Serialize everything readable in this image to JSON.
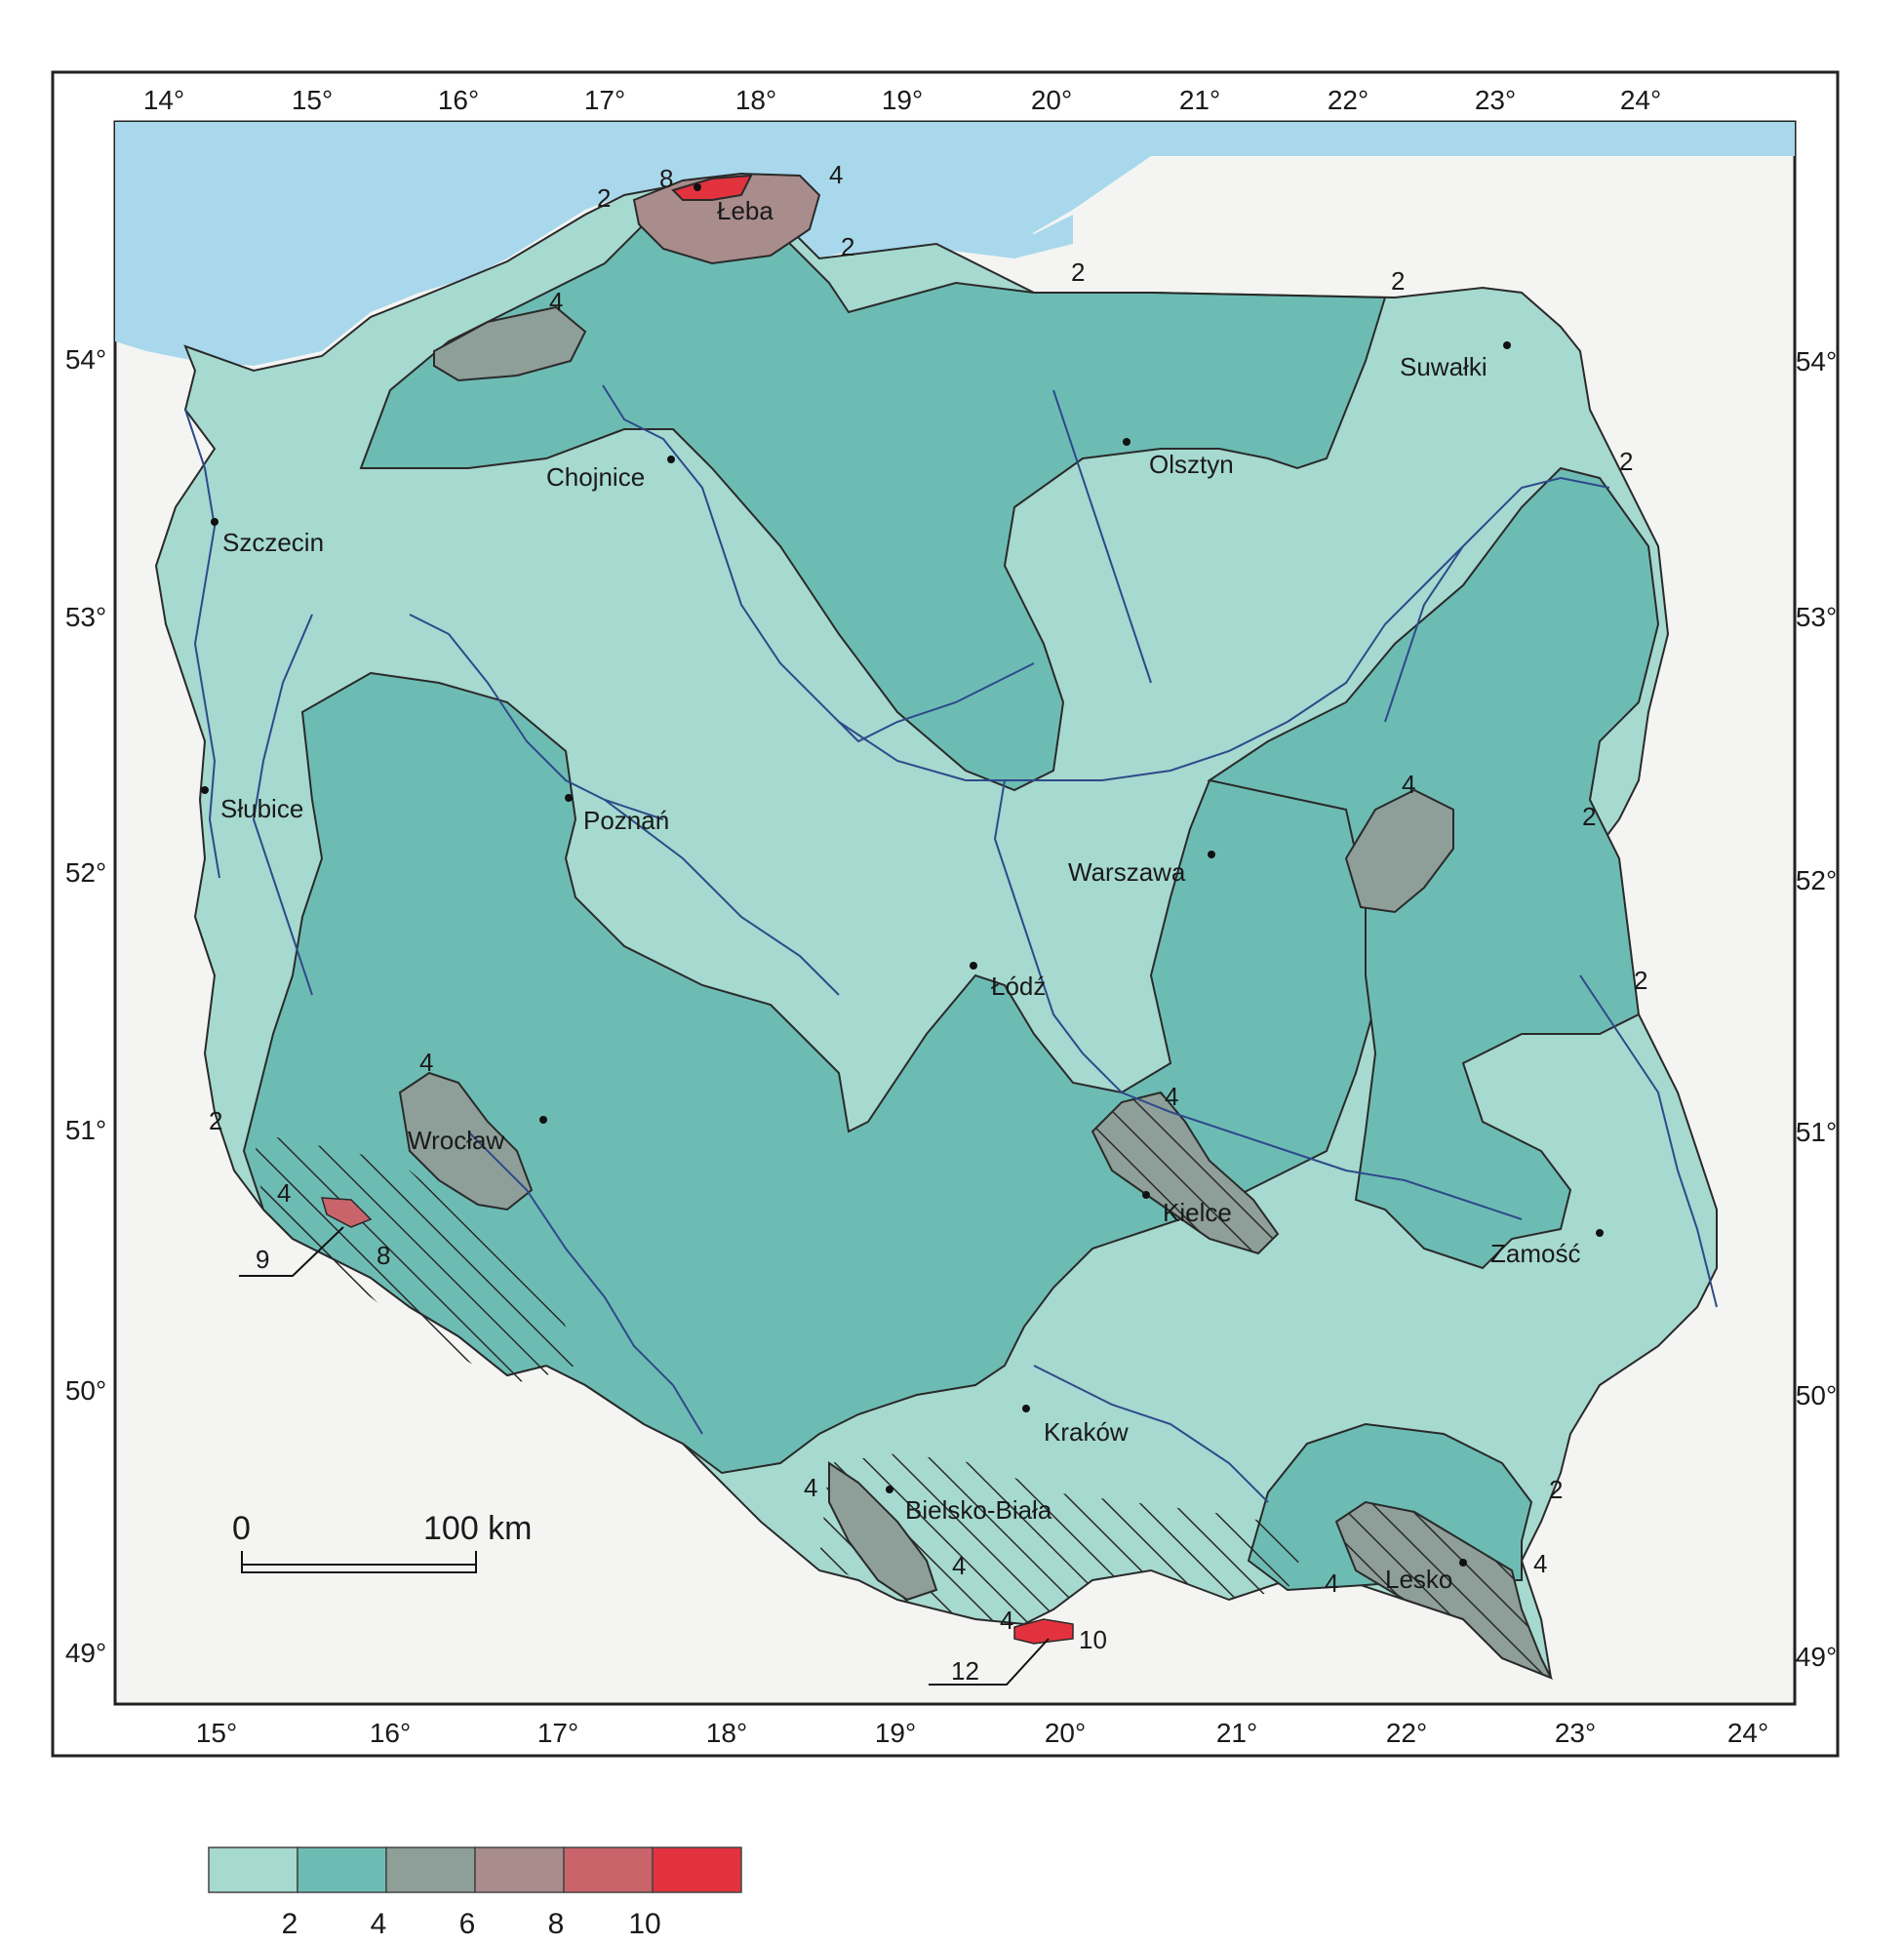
{
  "map": {
    "top_lon_labels": [
      "14°",
      "15°",
      "16°",
      "17°",
      "18°",
      "19°",
      "20°",
      "21°",
      "22°",
      "23°",
      "24°"
    ],
    "bottom_lon_labels": [
      "15°",
      "16°",
      "17°",
      "18°",
      "19°",
      "20°",
      "21°",
      "22°",
      "23°",
      "24°"
    ],
    "left_lat_labels": [
      "54°",
      "53°",
      "52°",
      "51°",
      "50°",
      "49°"
    ],
    "right_lat_labels": [
      "54°",
      "53°",
      "52°",
      "51°",
      "50°",
      "49°"
    ],
    "cities": {
      "leba": "Łeba",
      "suwalki": "Suwałki",
      "chojnice": "Chojnice",
      "olsztyn": "Olsztyn",
      "szczecin": "Szczecin",
      "slubice": "Słubice",
      "poznan": "Poznań",
      "warszawa": "Warszawa",
      "lodz": "Łódź",
      "wroclaw": "Wrocław",
      "kielce": "Kielce",
      "zamosc": "Zamość",
      "krakow": "Kraków",
      "bielsko": "Bielsko-Biała",
      "lesko": "Lesko"
    },
    "isoline_labels": {
      "leba_8": "8",
      "leba_4": "4",
      "leba_2w": "2",
      "leba_2e": "2",
      "n_2a": "2",
      "n_2b": "2",
      "pom_4": "4",
      "ne_2": "2",
      "east_4": "4",
      "east_2a": "2",
      "east_2b": "2",
      "sw_2": "2",
      "wro_4": "4",
      "sud_4": "4",
      "sud_8": "8",
      "sud_9": "9",
      "kielce_4": "4",
      "bb_4a": "4",
      "bb_4b": "4",
      "tatra_4": "4",
      "tatra_10": "10",
      "tatra_12": "12",
      "lesko_2": "2",
      "lesko_4a": "4",
      "lesko_4b": "4"
    },
    "scale_bar": {
      "zero": "0",
      "label": "100 km"
    }
  },
  "legend": {
    "colors": [
      "#a6d9cf",
      "#6dbcb4",
      "#8e9e98",
      "#a98c8c",
      "#c9646b",
      "#e2323e"
    ],
    "labels": [
      "2",
      "4",
      "6",
      "8",
      "10"
    ]
  },
  "colors": {
    "sea": "#a9d8ec",
    "outside": "#f4f5f3",
    "zone_2": "#a6d9cf",
    "zone_4": "#6dbcb4",
    "zone_6": "#8e9e98",
    "zone_8": "#a98c8c",
    "zone_10": "#e2323e",
    "river": "#2e4a8a",
    "grid": "#c9a7a7"
  }
}
